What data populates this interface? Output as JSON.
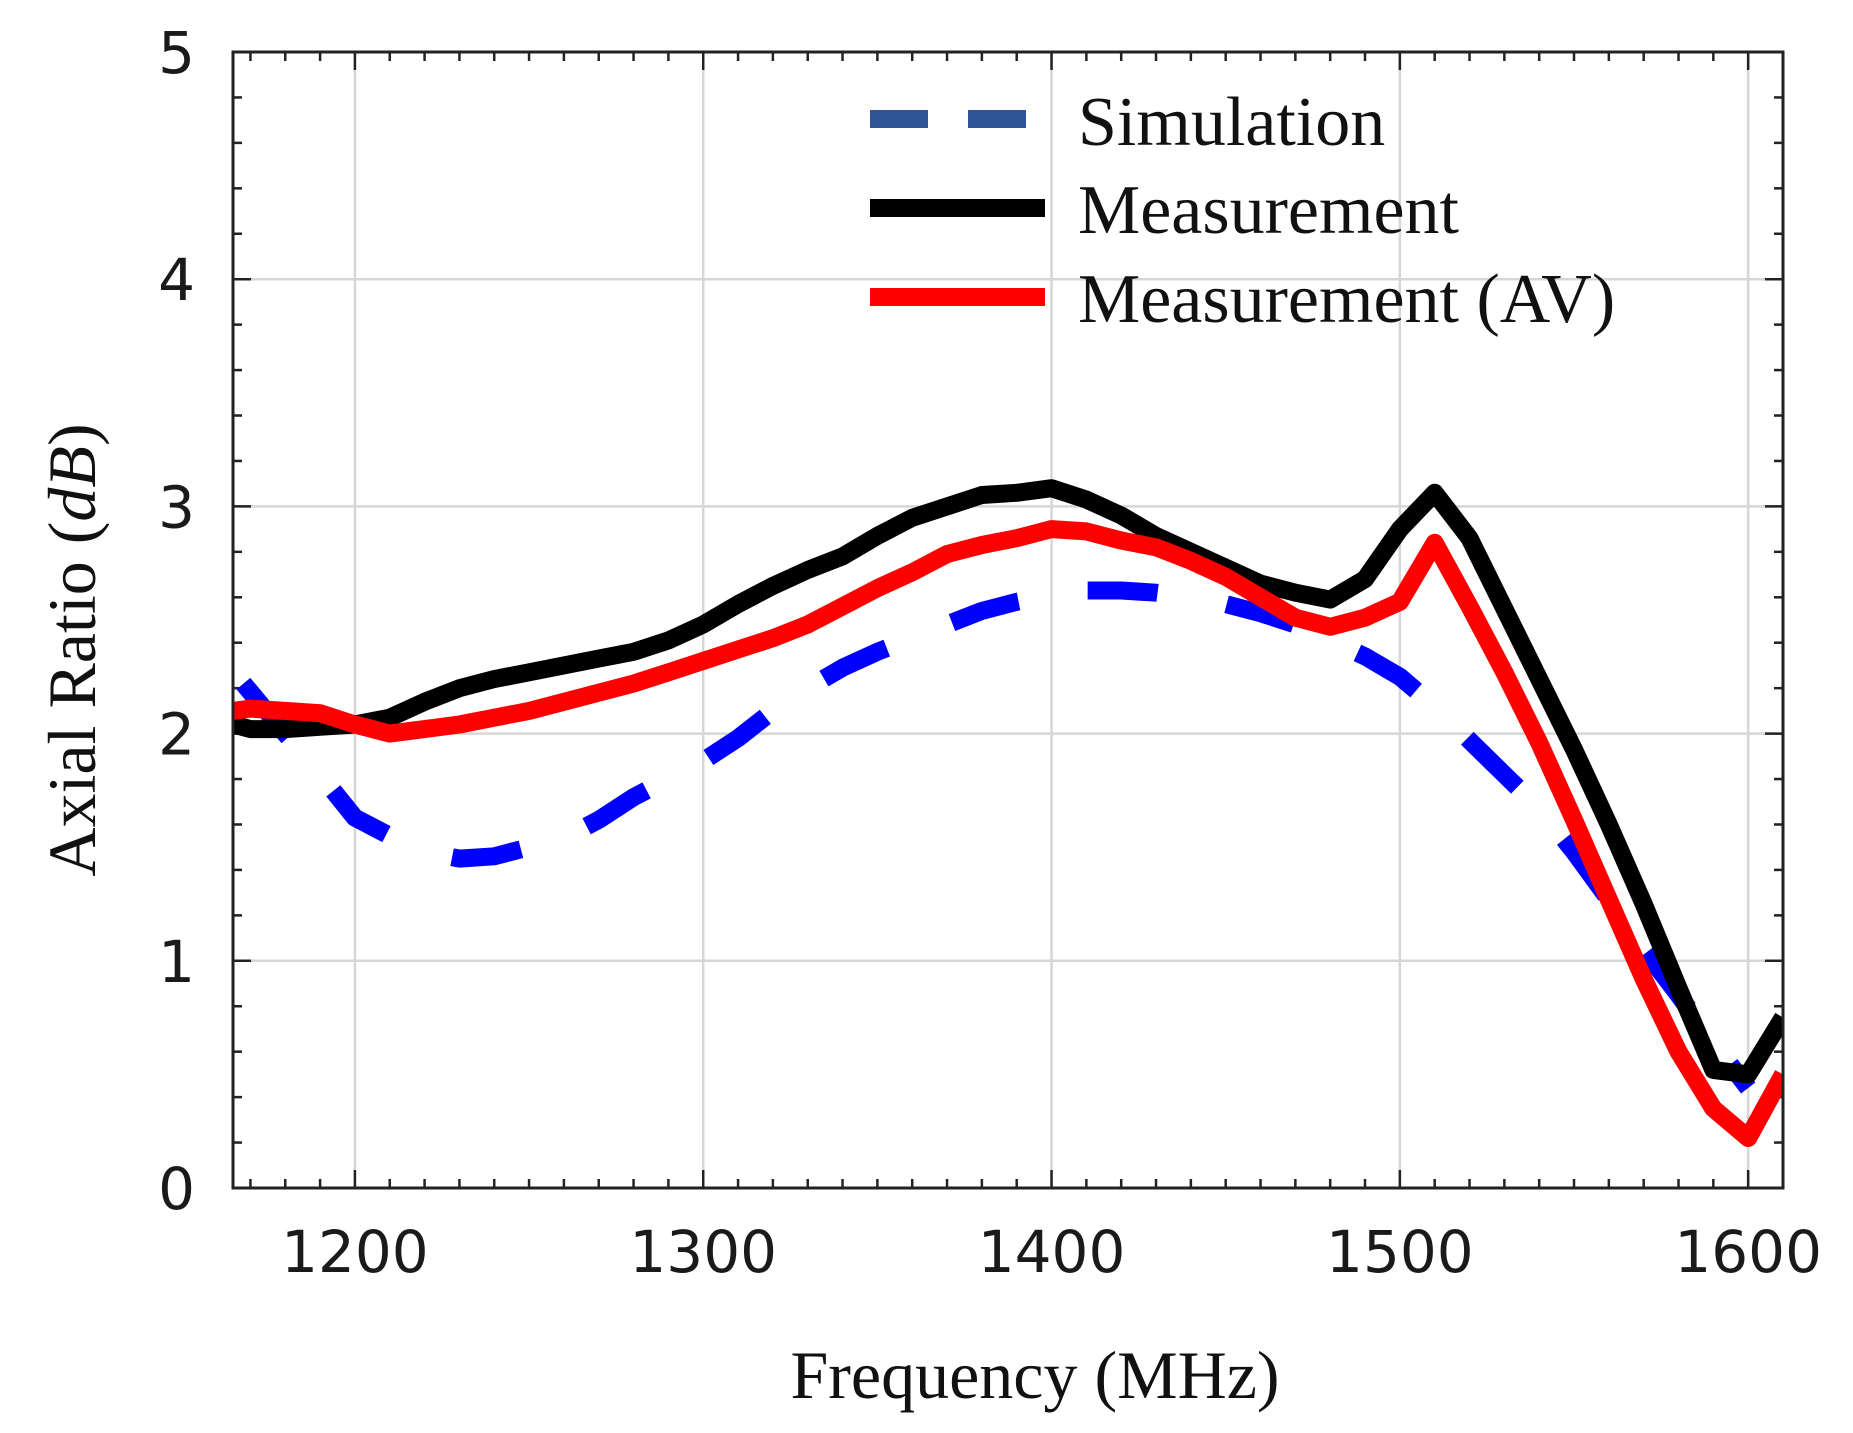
{
  "chart_data": {
    "type": "line",
    "title": "",
    "xlabel": "Frequency (MHz)",
    "ylabel_main": "Axial Ratio (",
    "ylabel_unit": "dB",
    "ylabel_close": ")",
    "xlim": [
      1165,
      1610
    ],
    "ylim": [
      0,
      5
    ],
    "xticks": [
      1200,
      1300,
      1400,
      1500,
      1600
    ],
    "xtick_labels": [
      "1200",
      "1300",
      "1400",
      "1500",
      "1600"
    ],
    "yticks": [
      0,
      1,
      2,
      3,
      4,
      5
    ],
    "ytick_labels": [
      "0",
      "1",
      "2",
      "3",
      "4",
      "5"
    ],
    "grid": true,
    "legend_position": "top-right",
    "series": [
      {
        "name": "Simulation",
        "color": "#0000ff",
        "legend_color": "#2f5597",
        "style": "dashed",
        "x": [
          1168,
          1180,
          1190,
          1200,
          1210,
          1220,
          1230,
          1240,
          1250,
          1260,
          1270,
          1280,
          1290,
          1300,
          1310,
          1320,
          1330,
          1340,
          1350,
          1360,
          1370,
          1380,
          1390,
          1400,
          1410,
          1420,
          1430,
          1440,
          1450,
          1460,
          1470,
          1480,
          1490,
          1500,
          1510,
          1520,
          1530,
          1540,
          1550,
          1560,
          1570,
          1580,
          1590,
          1600
        ],
        "y": [
          2.22,
          2.0,
          1.82,
          1.63,
          1.55,
          1.48,
          1.45,
          1.46,
          1.5,
          1.54,
          1.62,
          1.72,
          1.8,
          1.88,
          1.98,
          2.1,
          2.2,
          2.29,
          2.36,
          2.42,
          2.48,
          2.54,
          2.58,
          2.61,
          2.63,
          2.63,
          2.62,
          2.6,
          2.57,
          2.53,
          2.48,
          2.41,
          2.34,
          2.25,
          2.12,
          1.97,
          1.82,
          1.67,
          1.48,
          1.27,
          1.05,
          0.85,
          0.64,
          0.44
        ]
      },
      {
        "name": "Measurement",
        "color": "#000000",
        "legend_color": "#000000",
        "style": "solid",
        "x": [
          1165,
          1170,
          1180,
          1190,
          1200,
          1210,
          1220,
          1230,
          1240,
          1250,
          1260,
          1270,
          1280,
          1290,
          1300,
          1310,
          1320,
          1330,
          1340,
          1350,
          1360,
          1370,
          1380,
          1390,
          1400,
          1410,
          1420,
          1430,
          1440,
          1450,
          1460,
          1470,
          1480,
          1490,
          1500,
          1510,
          1520,
          1530,
          1540,
          1550,
          1560,
          1570,
          1580,
          1590,
          1600,
          1610
        ],
        "y": [
          2.04,
          2.02,
          2.02,
          2.03,
          2.04,
          2.07,
          2.14,
          2.2,
          2.24,
          2.27,
          2.3,
          2.33,
          2.36,
          2.41,
          2.48,
          2.57,
          2.65,
          2.72,
          2.78,
          2.87,
          2.95,
          3.0,
          3.05,
          3.06,
          3.08,
          3.03,
          2.96,
          2.87,
          2.8,
          2.73,
          2.66,
          2.62,
          2.59,
          2.68,
          2.9,
          3.06,
          2.86,
          2.55,
          2.24,
          1.93,
          1.6,
          1.25,
          0.88,
          0.52,
          0.5,
          0.75
        ]
      },
      {
        "name": "Measurement (AV)",
        "color": "#ff0000",
        "legend_color": "#ff0000",
        "style": "solid",
        "x": [
          1165,
          1170,
          1180,
          1190,
          1200,
          1210,
          1220,
          1230,
          1240,
          1250,
          1260,
          1270,
          1280,
          1290,
          1300,
          1310,
          1320,
          1330,
          1340,
          1350,
          1360,
          1370,
          1380,
          1390,
          1400,
          1410,
          1420,
          1430,
          1440,
          1450,
          1460,
          1470,
          1480,
          1490,
          1500,
          1510,
          1520,
          1530,
          1540,
          1550,
          1560,
          1570,
          1580,
          1590,
          1600,
          1610
        ],
        "y": [
          2.1,
          2.11,
          2.1,
          2.09,
          2.04,
          2.0,
          2.02,
          2.04,
          2.07,
          2.1,
          2.14,
          2.18,
          2.22,
          2.27,
          2.32,
          2.37,
          2.42,
          2.48,
          2.56,
          2.64,
          2.71,
          2.79,
          2.83,
          2.86,
          2.9,
          2.89,
          2.85,
          2.82,
          2.76,
          2.69,
          2.6,
          2.51,
          2.47,
          2.51,
          2.58,
          2.84,
          2.56,
          2.27,
          1.96,
          1.62,
          1.27,
          0.92,
          0.6,
          0.35,
          0.22,
          0.5
        ]
      }
    ]
  }
}
